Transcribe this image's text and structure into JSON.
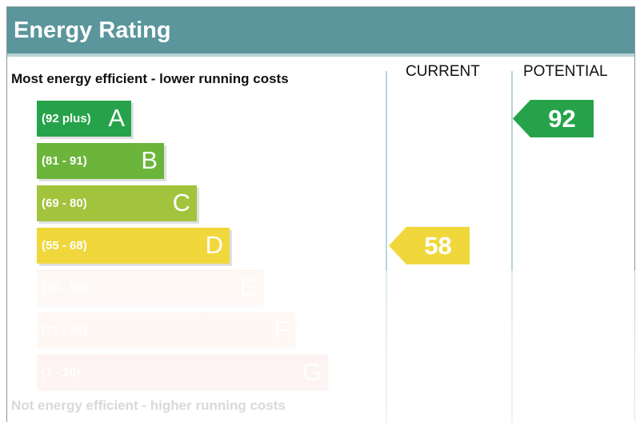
{
  "header": {
    "title": "Energy Rating"
  },
  "labels": {
    "top": "Most energy efficient - lower running costs",
    "bottom": "Not energy efficient - higher running costs",
    "current": "CURRENT",
    "potential": "POTENTIAL"
  },
  "chart_data": {
    "type": "bar",
    "title": "Energy Rating",
    "categories": [
      "A",
      "B",
      "C",
      "D",
      "E",
      "F",
      "G"
    ],
    "bands": [
      {
        "letter": "A",
        "range": "(92 plus)",
        "color": "#26a34a",
        "opacity": 1
      },
      {
        "letter": "B",
        "range": "(81 - 91)",
        "color": "#6bb53b",
        "opacity": 1
      },
      {
        "letter": "C",
        "range": "(69 - 80)",
        "color": "#a2c43d",
        "opacity": 1
      },
      {
        "letter": "D",
        "range": "(55 - 68)",
        "color": "#f0d73c",
        "opacity": 1
      },
      {
        "letter": "E",
        "range": "(39 - 54)",
        "color": "#f6c199",
        "opacity": 0.22
      },
      {
        "letter": "F",
        "range": "(21 - 38)",
        "color": "#f5a379",
        "opacity": 0.22
      },
      {
        "letter": "G",
        "range": "(1 - 20)",
        "color": "#ef5a5a",
        "opacity": 0.22
      }
    ],
    "current": {
      "value": 58,
      "band": "D",
      "color": "#f0d73c"
    },
    "potential": {
      "value": 92,
      "band": "A",
      "color": "#26a34a"
    }
  }
}
